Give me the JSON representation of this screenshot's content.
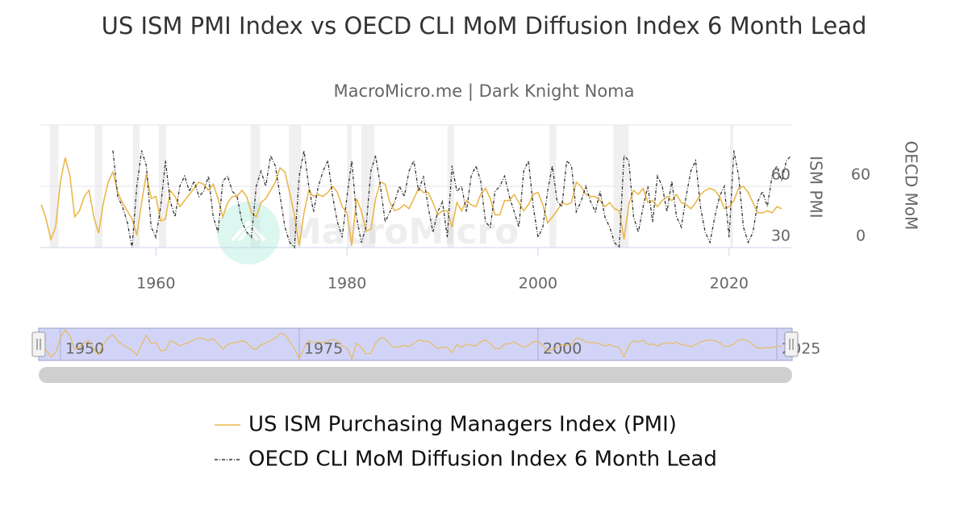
{
  "chart_data": {
    "type": "line",
    "title": "US ISM PMI Index vs OECD CLI MoM Diffusion Index 6 Month Lead",
    "subtitle": "MacroMicro.me | Dark Knight Noma",
    "watermark": "MacroMicro",
    "y_label": "ISM PMI",
    "y2_label": "OECD MoM",
    "xlim": [
      1947.9,
      2026.6
    ],
    "xticks": [
      1960,
      1980,
      2000,
      2020
    ],
    "ylim": [
      30,
      90
    ],
    "yticks": [
      30,
      60
    ],
    "y2lim": [
      0,
      120
    ],
    "y2ticks": [
      0,
      60
    ],
    "grid": true,
    "shaded_periods": [
      [
        1948.9,
        1949.8
      ],
      [
        1953.6,
        1954.4
      ],
      [
        1957.6,
        1958.3
      ],
      [
        1960.3,
        1961.1
      ],
      [
        1969.9,
        1970.9
      ],
      [
        1973.9,
        1975.2
      ],
      [
        1980.0,
        1980.5
      ],
      [
        1981.5,
        1982.9
      ],
      [
        1990.5,
        1991.2
      ],
      [
        2001.2,
        2001.9
      ],
      [
        2007.9,
        2009.5
      ],
      [
        2020.1,
        2020.4
      ]
    ],
    "navigator_xticks": [
      1950,
      1975,
      2000,
      2025
    ],
    "legend_position": "bottom",
    "x": [
      1948,
      1948.5,
      1949,
      1949.5,
      1950,
      1950.5,
      1951,
      1951.5,
      1952,
      1952.5,
      1953,
      1953.5,
      1954,
      1954.5,
      1955,
      1955.5,
      1956,
      1956.5,
      1957,
      1957.5,
      1958,
      1958.5,
      1959,
      1959.5,
      1960,
      1960.5,
      1961,
      1961.5,
      1962,
      1962.5,
      1963,
      1963.5,
      1964,
      1964.5,
      1965,
      1965.5,
      1966,
      1966.5,
      1967,
      1967.5,
      1968,
      1968.5,
      1969,
      1969.5,
      1970,
      1970.5,
      1971,
      1971.5,
      1972,
      1972.5,
      1973,
      1973.5,
      1974,
      1974.5,
      1975,
      1975.5,
      1976,
      1976.5,
      1977,
      1977.5,
      1978,
      1978.5,
      1979,
      1979.5,
      1980,
      1980.5,
      1981,
      1981.5,
      1982,
      1982.5,
      1983,
      1983.5,
      1984,
      1984.5,
      1985,
      1985.5,
      1986,
      1986.5,
      1987,
      1987.5,
      1988,
      1988.5,
      1989,
      1989.5,
      1990,
      1990.5,
      1991,
      1991.5,
      1992,
      1992.5,
      1993,
      1993.5,
      1994,
      1994.5,
      1995,
      1995.5,
      1996,
      1996.5,
      1997,
      1997.5,
      1998,
      1998.5,
      1999,
      1999.5,
      2000,
      2000.5,
      2001,
      2001.5,
      2002,
      2002.5,
      2003,
      2003.5,
      2004,
      2004.5,
      2005,
      2005.5,
      2006,
      2006.5,
      2007,
      2007.5,
      2008,
      2008.5,
      2009,
      2009.5,
      2010,
      2010.5,
      2011,
      2011.5,
      2012,
      2012.5,
      2013,
      2013.5,
      2014,
      2014.5,
      2015,
      2015.5,
      2016,
      2016.5,
      2017,
      2017.5,
      2018,
      2018.5,
      2019,
      2019.5,
      2020,
      2020.5,
      2021,
      2021.5,
      2022,
      2022.5,
      2023,
      2023.5,
      2024,
      2024.5,
      2025,
      2025.5,
      2026,
      2026.5
    ],
    "series": [
      {
        "name": "US ISM Purchasing Managers Index (PMI)",
        "color": "#eab84b",
        "axis": "y",
        "line_style": "solid",
        "values": [
          51,
          44,
          34,
          40,
          62,
          74,
          65,
          45,
          48,
          55,
          58,
          45,
          37,
          52,
          62,
          67,
          57,
          52,
          48,
          44,
          36,
          52,
          66,
          54,
          55,
          43,
          44,
          58,
          55,
          50,
          53,
          56,
          59,
          62,
          61,
          58,
          61,
          54,
          45,
          52,
          55,
          55,
          58,
          55,
          47,
          45,
          52,
          54,
          58,
          62,
          69,
          67,
          57,
          46,
          31,
          47,
          58,
          55,
          56,
          55,
          57,
          60,
          57,
          50,
          47,
          31,
          54,
          48,
          38,
          39,
          54,
          62,
          61,
          52,
          48,
          49,
          51,
          49,
          54,
          59,
          57,
          57,
          52,
          46,
          48,
          48,
          40,
          52,
          48,
          53,
          51,
          50,
          56,
          59,
          54,
          46,
          46,
          53,
          53,
          56,
          52,
          48,
          51,
          56,
          57,
          51,
          42,
          45,
          48,
          52,
          51,
          52,
          62,
          60,
          56,
          55,
          55,
          53,
          50,
          52,
          49,
          48,
          34,
          51,
          58,
          56,
          59,
          52,
          53,
          50,
          53,
          55,
          53,
          56,
          52,
          51,
          49,
          52,
          56,
          58,
          59,
          58,
          55,
          49,
          50,
          53,
          59,
          60,
          57,
          52,
          47,
          47,
          48,
          47,
          50,
          49,
          null,
          null
        ]
      },
      {
        "name": "OECD CLI MoM Diffusion Index 6 Month Lead",
        "color": "#333333",
        "axis": "y2",
        "line_style": "dash-dot",
        "values": [
          null,
          null,
          null,
          null,
          null,
          null,
          null,
          null,
          null,
          null,
          null,
          null,
          null,
          null,
          null,
          95,
          50,
          40,
          25,
          0,
          60,
          95,
          80,
          20,
          10,
          40,
          85,
          45,
          30,
          60,
          70,
          55,
          65,
          50,
          55,
          70,
          30,
          15,
          65,
          70,
          55,
          50,
          25,
          15,
          10,
          60,
          75,
          60,
          90,
          80,
          50,
          20,
          5,
          0,
          70,
          95,
          60,
          35,
          60,
          75,
          85,
          50,
          25,
          10,
          50,
          85,
          30,
          5,
          20,
          75,
          90,
          60,
          25,
          35,
          45,
          60,
          50,
          75,
          85,
          55,
          70,
          40,
          15,
          35,
          45,
          10,
          80,
          55,
          60,
          35,
          70,
          80,
          65,
          25,
          20,
          55,
          60,
          70,
          50,
          35,
          20,
          75,
          85,
          40,
          10,
          20,
          55,
          80,
          45,
          40,
          85,
          80,
          35,
          45,
          60,
          45,
          35,
          55,
          30,
          20,
          5,
          0,
          90,
          85,
          30,
          15,
          40,
          60,
          25,
          70,
          60,
          35,
          65,
          30,
          20,
          50,
          75,
          85,
          40,
          15,
          5,
          30,
          50,
          60,
          10,
          95,
          70,
          20,
          5,
          15,
          45,
          55,
          40,
          70,
          80,
          65,
          85,
          90
        ]
      }
    ]
  }
}
